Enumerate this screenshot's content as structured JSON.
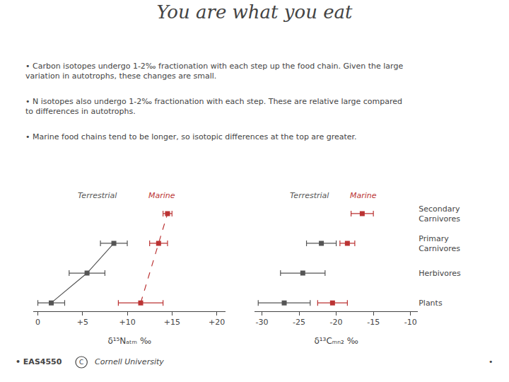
{
  "chart_data": [
    {
      "type": "scatter",
      "title": "You are what you eat",
      "annotations": [
        "• Carbon isotopes undergo 1-2‰ fractionation with each step up the food chain. Given the large variation in autotrophs, these changes are small.",
        "• N isotopes also undergo 1-2‰ fractionation with each step. These are relative large compared to differences in autotrophs.",
        "• Marine food chains tend to be longer, so isotopic differences at the top are greater.",
        "• EAS4550",
        "C",
        "Cornell University",
        "•"
      ],
      "categories": [
        "Plants",
        "Herbivores",
        "Primary\nCarnivores",
        "Secondary\nCarnivores"
      ],
      "series": [
        {
          "name": "Terrestrial",
          "color": "#555555",
          "marker": "square",
          "line_style": "solid",
          "values": [
            1.5,
            5.5,
            8.5,
            null
          ],
          "errors": [
            1.5,
            2.0,
            1.5,
            null
          ]
        },
        {
          "name": "Marine",
          "color": "#bb3333",
          "marker": "square",
          "line_style": "dashed",
          "values": [
            11.5,
            null,
            13.5,
            14.5
          ],
          "errors": [
            2.5,
            null,
            1.0,
            0.5
          ]
        }
      ],
      "xlabel": "δ¹⁵Nₐₜₘ ‰",
      "xlim": [
        -0.5,
        21
      ],
      "xticks": [
        0,
        {
          "value": 5,
          "label": "+5"
        },
        {
          "value": 10,
          "label": "+10"
        },
        {
          "value": 15,
          "label": "+15"
        },
        {
          "value": 20,
          "label": "+20"
        }
      ],
      "grid": false,
      "tick_labels": "x"
    },
    {
      "type": "scatter",
      "categories": [
        "Plants",
        "Herbivores",
        "Primary\nCarnivores",
        "Secondary\nCarnivores"
      ],
      "series": [
        {
          "name": "Terrestrial",
          "color": "#555555",
          "marker": "square",
          "values": [
            -27.0,
            -24.5,
            -22.0,
            null
          ],
          "errors": [
            3.5,
            3.0,
            2.0,
            null
          ]
        },
        {
          "name": "Marine",
          "color": "#bb3333",
          "marker": "square",
          "values": [
            -20.5,
            null,
            -18.5,
            -16.5
          ],
          "errors": [
            2.0,
            null,
            1.0,
            1.5
          ]
        }
      ],
      "xlabel": "δ¹³Cₘₙ₂ ‰",
      "xlim": [
        -31,
        -9
      ],
      "xticks": [
        -30,
        -25,
        -20,
        -15,
        -10
      ],
      "grid": false
    }
  ]
}
